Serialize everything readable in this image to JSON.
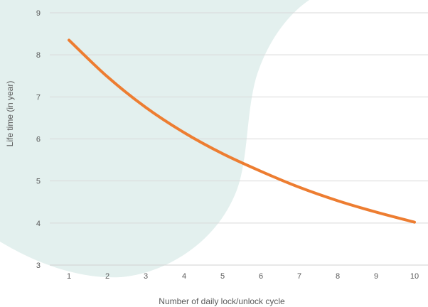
{
  "chart_data": {
    "type": "line",
    "title": "",
    "xlabel": "Number of daily lock/unlock cycle",
    "ylabel": "Life time (in year)",
    "x": [
      1,
      2,
      3,
      4,
      5,
      6,
      7,
      8,
      9,
      10
    ],
    "series": [
      {
        "values": [
          8.35,
          7.48,
          6.75,
          6.15,
          5.65,
          5.23,
          4.85,
          4.53,
          4.26,
          4.02
        ],
        "color": "#ED7D31"
      }
    ],
    "xlim": [
      0.5,
      10.5
    ],
    "ylim": [
      3,
      9
    ],
    "yticks": [
      3,
      4,
      5,
      6,
      7,
      8,
      9
    ],
    "xticks": [
      1,
      2,
      3,
      4,
      5,
      6,
      7,
      8,
      9,
      10
    ],
    "grid": true,
    "background_shape_color": "#E3F0EE"
  }
}
